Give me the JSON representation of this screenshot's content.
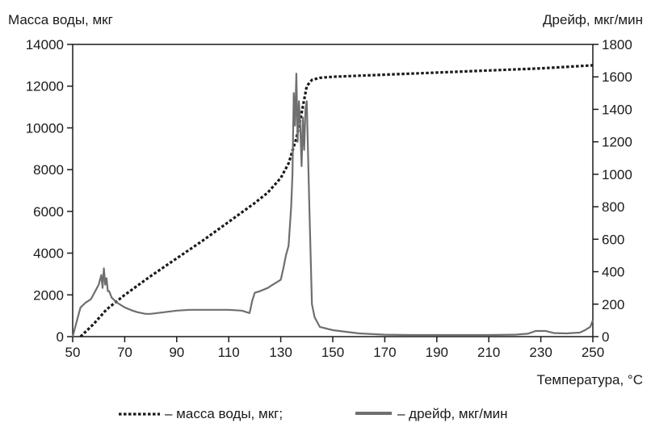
{
  "chart_data": {
    "type": "line",
    "ylabel_left": "Масса воды, мкг",
    "ylabel_right": "Дрейф, мкг/мин",
    "xlabel": "Температура, °C",
    "legend_mass": "– масса воды, мкг;",
    "legend_drift": "– дрейф, мкг/мин",
    "legend_placement": "bottom",
    "grid": false,
    "colors": {
      "mass": "#1a1a1a",
      "drift": "#6f6f6f"
    },
    "xlim": [
      50,
      250
    ],
    "ylim_left": [
      0,
      14000
    ],
    "ylim_right": [
      0,
      1800
    ],
    "x_ticks": [
      "50",
      "70",
      "90",
      "110",
      "130",
      "150",
      "170",
      "190",
      "210",
      "230",
      "250"
    ],
    "y_left_ticks": [
      "0",
      "2000",
      "4000",
      "6000",
      "8000",
      "10000",
      "12000",
      "14000"
    ],
    "y_right_ticks": [
      "0",
      "200",
      "400",
      "600",
      "800",
      "1000",
      "1200",
      "1400",
      "1600",
      "1800"
    ],
    "series": [
      {
        "name": "масса воды, мкг",
        "axis": "left",
        "style": "dotted",
        "x": [
          53,
          58,
          63,
          70,
          80,
          90,
          100,
          110,
          120,
          125,
          130,
          133,
          136,
          138,
          140,
          142,
          145,
          150,
          170,
          190,
          210,
          230,
          250
        ],
        "y": [
          0,
          600,
          1300,
          2000,
          2900,
          3750,
          4600,
          5500,
          6400,
          6900,
          7600,
          8300,
          9500,
          10700,
          12000,
          12300,
          12400,
          12450,
          12550,
          12650,
          12750,
          12850,
          13000
        ]
      },
      {
        "name": "дрейф, мкг/мин",
        "axis": "right",
        "style": "solid",
        "x": [
          50,
          51,
          52,
          53,
          55,
          57,
          58,
          59,
          60,
          61,
          61.5,
          62,
          62.5,
          63,
          63.5,
          64,
          65,
          67,
          70,
          73,
          75,
          78,
          80,
          85,
          90,
          95,
          100,
          105,
          110,
          115,
          117,
          118,
          119,
          120,
          122,
          125,
          127,
          130,
          131,
          132,
          133,
          134,
          134.5,
          135,
          135.5,
          136,
          136.5,
          137,
          137.5,
          138,
          138.5,
          139,
          139.5,
          140,
          141,
          142,
          143,
          145,
          150,
          155,
          160,
          170,
          180,
          190,
          200,
          210,
          220,
          225,
          228,
          232,
          235,
          240,
          245,
          247,
          249,
          250
        ],
        "y": [
          0,
          60,
          120,
          180,
          210,
          230,
          260,
          290,
          320,
          380,
          300,
          420,
          320,
          360,
          280,
          280,
          240,
          210,
          180,
          160,
          150,
          140,
          140,
          150,
          160,
          165,
          165,
          165,
          165,
          160,
          150,
          145,
          220,
          270,
          280,
          300,
          320,
          350,
          420,
          500,
          560,
          800,
          1000,
          1500,
          1300,
          1620,
          1200,
          1450,
          1300,
          1050,
          1350,
          1150,
          1400,
          1450,
          800,
          200,
          120,
          60,
          40,
          30,
          20,
          12,
          10,
          10,
          10,
          10,
          12,
          18,
          35,
          35,
          22,
          20,
          25,
          40,
          60,
          100
        ]
      }
    ]
  }
}
